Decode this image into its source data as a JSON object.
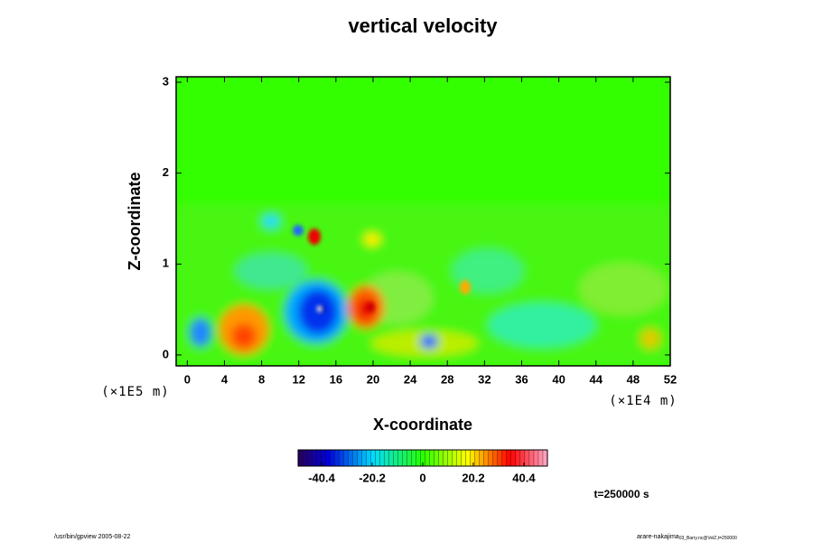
{
  "chart_data": {
    "type": "contour",
    "title": "vertical velocity",
    "x_label": "X-coordinate",
    "y_label": "Z-coordinate",
    "x_unit": "(×1E4 m)",
    "y_unit": "(×1E5 m)",
    "xlim": [
      -1.2,
      52
    ],
    "xticks": [
      0,
      4,
      8,
      12,
      16,
      20,
      24,
      28,
      32,
      36,
      40,
      44,
      48,
      52
    ],
    "ylim": [
      -0.12,
      3.06
    ],
    "yticks": [
      0,
      1,
      2,
      3
    ],
    "colorbar": {
      "lim": [
        -49.8,
        49.8
      ],
      "ticks": [
        -40.4,
        -20.2,
        0,
        20.2,
        40.4
      ]
    },
    "time_label": "t=250000 s"
  },
  "footer": {
    "left": "/usr/bin/gpview 2005-08-22",
    "right": "arare-nakajima",
    "right_sub": "03_Barry.nc@VelZ,t=250000"
  }
}
